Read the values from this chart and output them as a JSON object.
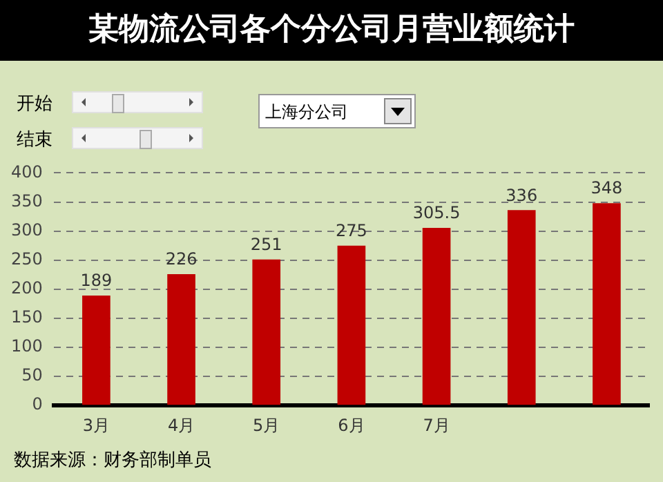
{
  "chart_data": {
    "type": "bar",
    "title": "某物流公司各个分公司月营业额统计",
    "categories": [
      "3月",
      "4月",
      "5月",
      "6月",
      "7月",
      null,
      null
    ],
    "values": [
      189,
      226,
      251,
      275,
      305.5,
      336,
      348
    ],
    "color": "#c00000",
    "ylim": [
      0,
      400
    ],
    "yticks": [
      0,
      50,
      100,
      150,
      200,
      250,
      300,
      350,
      400
    ],
    "grid": "y",
    "data_labels": true,
    "annotations": [
      "开始",
      "结束",
      "上海分公司",
      "数据来源：财务部制单员"
    ]
  }
}
